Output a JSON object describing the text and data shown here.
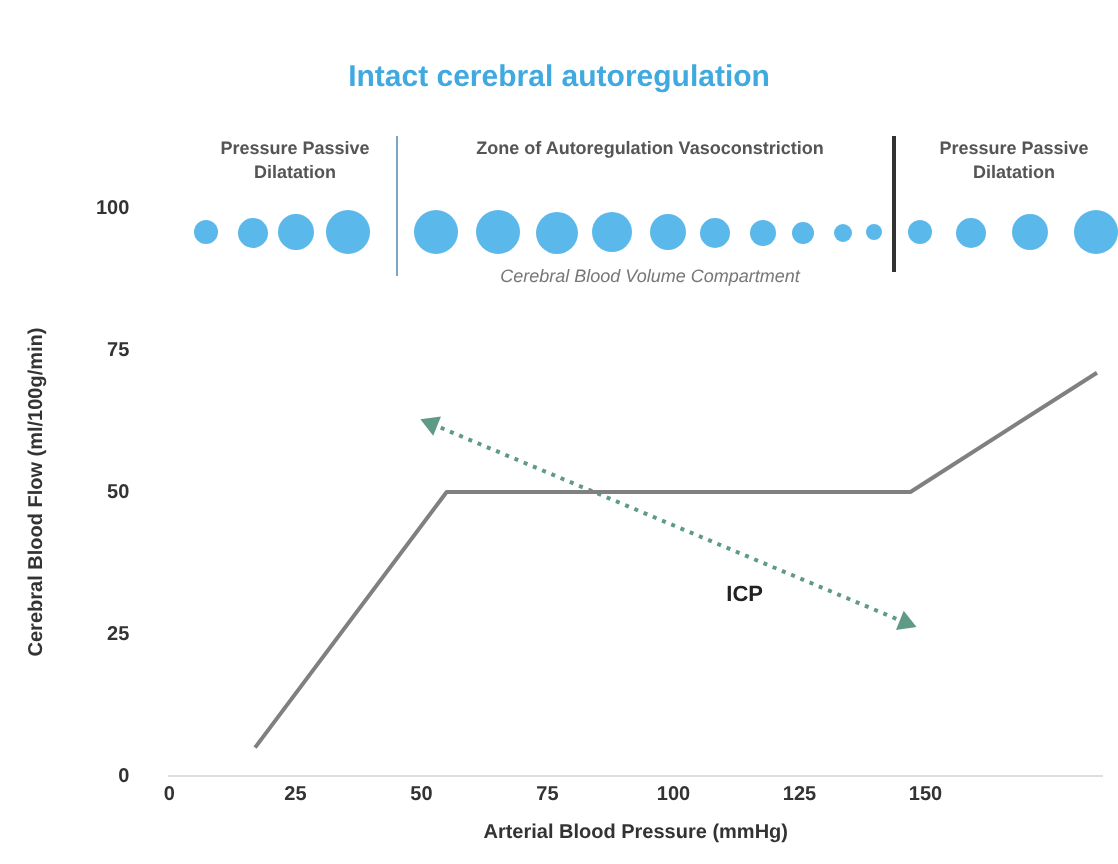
{
  "chart_data": {
    "type": "line",
    "title": "Intact cerebral autoregulation",
    "xlabel": "Arterial Blood Pressure (mmHg)",
    "ylabel": "Cerebral Blood Flow (ml/100g/min)",
    "xlim": [
      0,
      185
    ],
    "xticks": [
      0,
      25,
      50,
      75,
      100,
      125,
      150
    ],
    "ylim": [
      0,
      100
    ],
    "yticks": [
      0,
      25,
      50,
      75,
      100
    ],
    "grid": false,
    "legend": false,
    "marker": "none",
    "series": [
      {
        "color": "#808080",
        "x": [
          17,
          55,
          147,
          184
        ],
        "values": [
          5,
          50,
          50,
          71
        ],
        "line_style": "solid"
      },
      {
        "name": "ICP",
        "color": "#5f9a86",
        "x": [
          52,
          146
        ],
        "values": [
          62,
          27
        ],
        "line_style": "dotted",
        "marker": "triangle"
      }
    ],
    "annotations": [
      "Pressure Passive Dilatation",
      "Zone of Autoregulation Vasoconstriction",
      "Pressure Passive Dilatation",
      "Cerebral Blood Volume Compartment"
    ]
  }
}
